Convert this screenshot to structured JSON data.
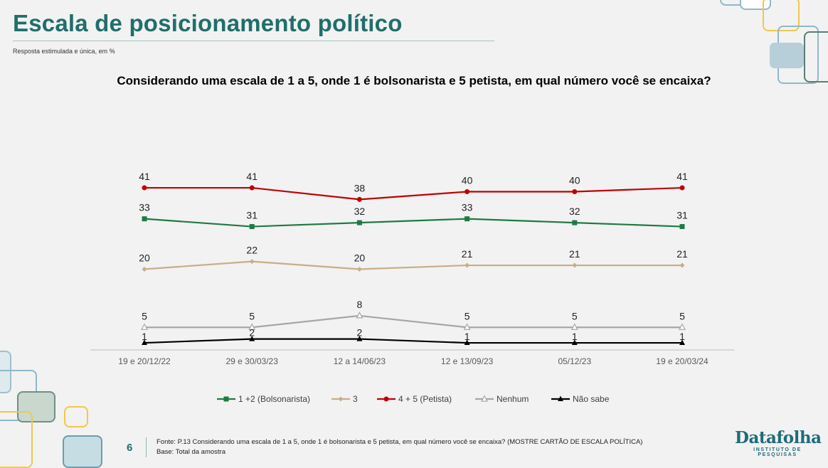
{
  "header": {
    "title": "Escala de posicionamento político",
    "subtitle": "Resposta estimulada e única, em %"
  },
  "chart_data": {
    "type": "line",
    "title": "Considerando uma escala de 1 a 5, onde 1 é bolsonarista e 5 petista, em qual número você se encaixa?",
    "categories": [
      "19 e 20/12/22",
      "29 e 30/03/23",
      "12 a 14/06/23",
      "12 e 13/09/23",
      "05/12/23",
      "19 e 20/03/24"
    ],
    "ylim": [
      0,
      41
    ],
    "grid": false,
    "legend_position": "bottom",
    "series": [
      {
        "name": "1 +2 (Bolsonarista)",
        "values": [
          33,
          31,
          32,
          33,
          32,
          31
        ],
        "color": "#1f7a43",
        "marker": "square"
      },
      {
        "name": "3",
        "values": [
          20,
          22,
          20,
          21,
          21,
          21
        ],
        "color": "#c8ad8a",
        "marker": "diamond"
      },
      {
        "name": "4 + 5 (Petista)",
        "values": [
          41,
          41,
          38,
          40,
          40,
          41
        ],
        "color": "#c00000",
        "marker": "circle"
      },
      {
        "name": "Nenhum",
        "values": [
          5,
          5,
          8,
          5,
          5,
          5
        ],
        "color": "#a6a6a6",
        "marker": "triangle-open"
      },
      {
        "name": "Não sabe",
        "values": [
          1,
          2,
          2,
          1,
          1,
          1
        ],
        "color": "#000000",
        "marker": "triangle"
      }
    ]
  },
  "footer": {
    "page_number": "6",
    "source": "Fonte: P.13 Considerando uma escala de 1 a 5, onde 1 é bolsonarista e 5 petista, em qual número você se encaixa? (MOSTRE CARTÃO DE ESCALA POLÍTICA)",
    "base": "Base: Total da amostra"
  },
  "logo": {
    "name": "Datafolha",
    "tagline": "INSTITUTO DE PESQUISAS"
  }
}
